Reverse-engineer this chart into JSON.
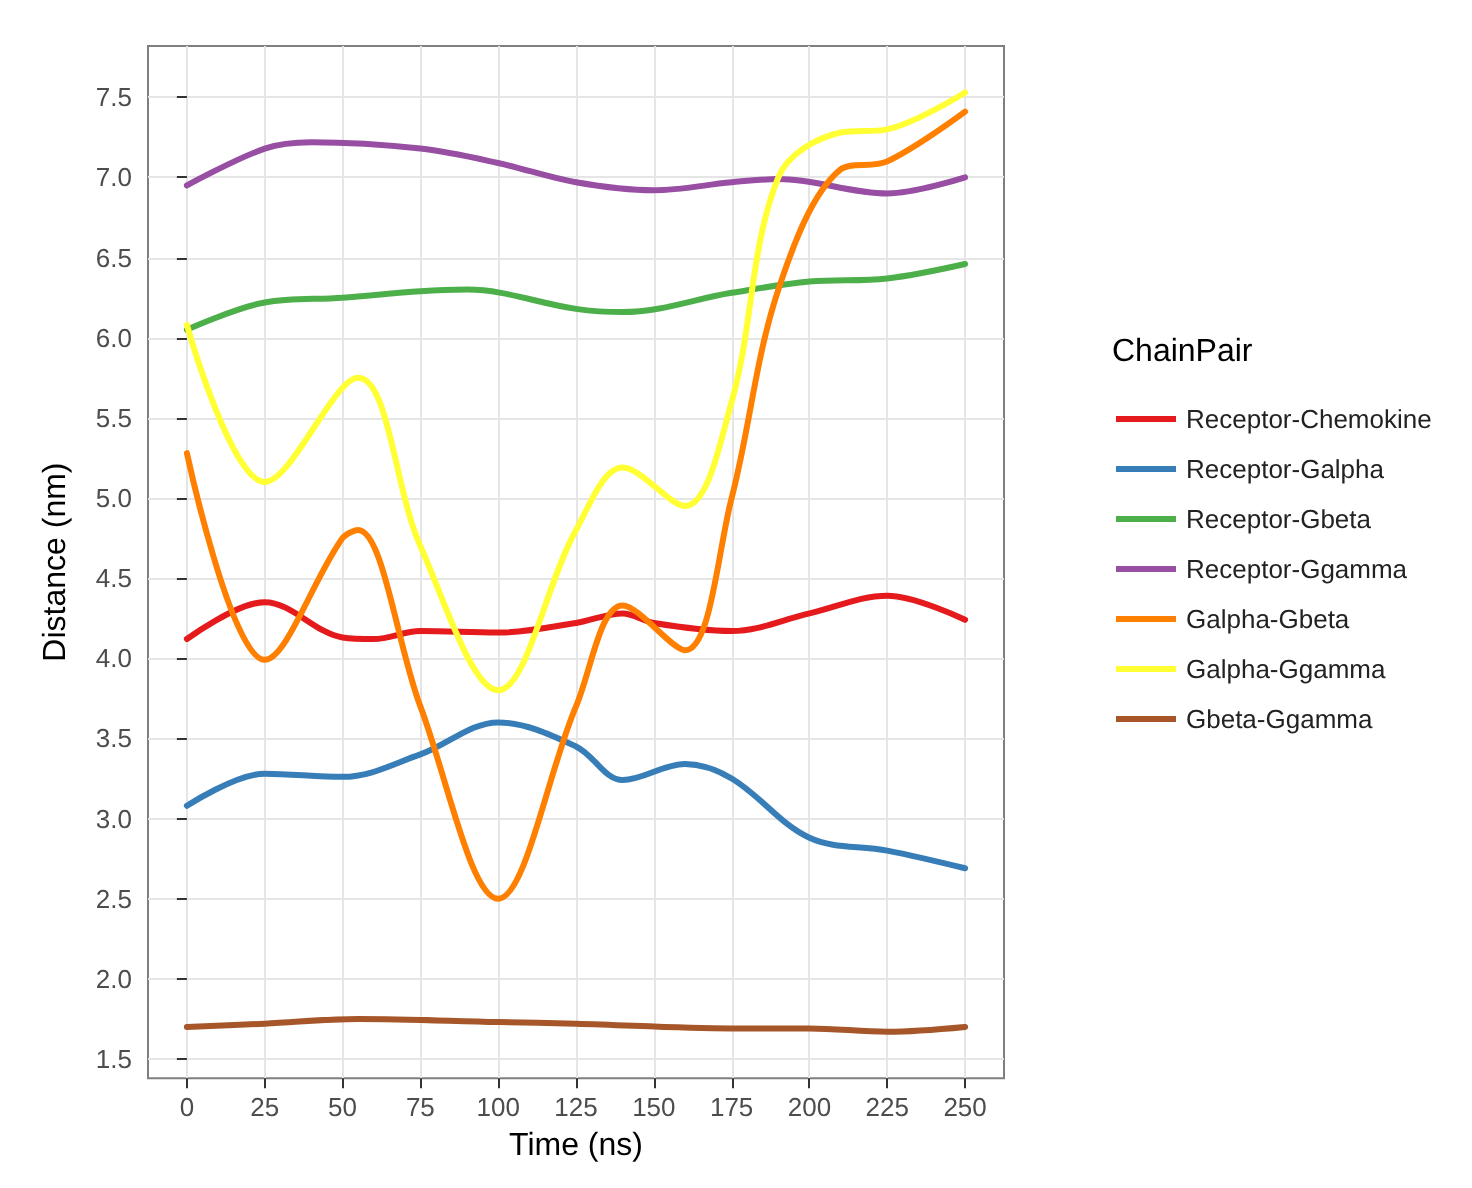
{
  "chart_data": {
    "type": "line",
    "xlabel": "Time (ns)",
    "ylabel": "Distance (nm)",
    "legend_title": "ChainPair",
    "legend": "right",
    "grid": true,
    "marker": "none",
    "line_style": "solid",
    "xlim": [
      -12.5,
      262.5
    ],
    "xticks": [
      0,
      25,
      50,
      75,
      100,
      125,
      150,
      175,
      200,
      225,
      250
    ],
    "ylim": [
      1.38,
      7.82
    ],
    "yticks": [
      {
        "value": 1.5,
        "label": "1.5"
      },
      {
        "value": 2,
        "label": "2.0"
      },
      {
        "value": 2.5,
        "label": "2.5"
      },
      {
        "value": 3,
        "label": "3.0"
      },
      {
        "value": 3.5,
        "label": "3.5"
      },
      {
        "value": 4,
        "label": "4.0"
      },
      {
        "value": 4.5,
        "label": "4.5"
      },
      {
        "value": 5,
        "label": "5.0"
      },
      {
        "value": 5.5,
        "label": "5.5"
      },
      {
        "value": 6,
        "label": "6.0"
      },
      {
        "value": 6.5,
        "label": "6.5"
      },
      {
        "value": 7,
        "label": "7.0"
      },
      {
        "value": 7.5,
        "label": "7.5"
      }
    ],
    "series": [
      {
        "name": "Receptor-Chemokine",
        "color": "#e41a1c",
        "x": [
          0,
          25,
          50,
          60,
          75,
          100,
          125,
          140,
          150,
          175,
          200,
          225,
          250
        ],
        "values": [
          4.12,
          4.35,
          4.13,
          4.12,
          4.17,
          4.16,
          4.22,
          4.28,
          4.22,
          4.17,
          4.28,
          4.39,
          4.24
        ]
      },
      {
        "name": "Receptor-Galpha",
        "color": "#377eb8",
        "x": [
          0,
          25,
          50,
          75,
          100,
          125,
          140,
          160,
          175,
          200,
          225,
          250
        ],
        "values": [
          3.08,
          3.28,
          3.26,
          3.4,
          3.6,
          3.45,
          3.24,
          3.34,
          3.25,
          2.88,
          2.8,
          2.69
        ]
      },
      {
        "name": "Receptor-Gbeta",
        "color": "#4daf4a",
        "x": [
          0,
          25,
          50,
          75,
          90,
          125,
          140,
          175,
          200,
          225,
          250
        ],
        "values": [
          6.05,
          6.22,
          6.25,
          6.29,
          6.3,
          6.18,
          6.16,
          6.28,
          6.35,
          6.37,
          6.46
        ]
      },
      {
        "name": "Receptor-Ggamma",
        "color": "#984ea3",
        "x": [
          0,
          25,
          40,
          75,
          100,
          125,
          150,
          175,
          190,
          225,
          250
        ],
        "values": [
          6.95,
          7.18,
          7.22,
          7.18,
          7.09,
          6.97,
          6.92,
          6.97,
          6.99,
          6.9,
          7.0
        ]
      },
      {
        "name": "Galpha-Gbeta",
        "color": "#ff7f00",
        "x": [
          0,
          25,
          50,
          55,
          75,
          100,
          125,
          140,
          160,
          175,
          190,
          210,
          225,
          250
        ],
        "values": [
          5.28,
          3.99,
          4.75,
          4.8,
          3.7,
          2.5,
          3.7,
          4.33,
          4.05,
          5.0,
          6.3,
          7.05,
          7.1,
          7.41
        ]
      },
      {
        "name": "Galpha-Ggamma",
        "color": "#ffff33",
        "x": [
          0,
          25,
          55,
          75,
          100,
          125,
          140,
          160,
          175,
          190,
          210,
          225,
          250
        ],
        "values": [
          6.08,
          5.1,
          5.75,
          4.7,
          3.8,
          4.8,
          5.19,
          4.95,
          5.6,
          7.0,
          7.28,
          7.3,
          7.53
        ]
      },
      {
        "name": "Gbeta-Ggamma",
        "color": "#a65628",
        "x": [
          0,
          25,
          55,
          100,
          125,
          175,
          200,
          225,
          250
        ],
        "values": [
          1.7,
          1.72,
          1.75,
          1.73,
          1.72,
          1.69,
          1.69,
          1.67,
          1.7
        ]
      }
    ]
  }
}
